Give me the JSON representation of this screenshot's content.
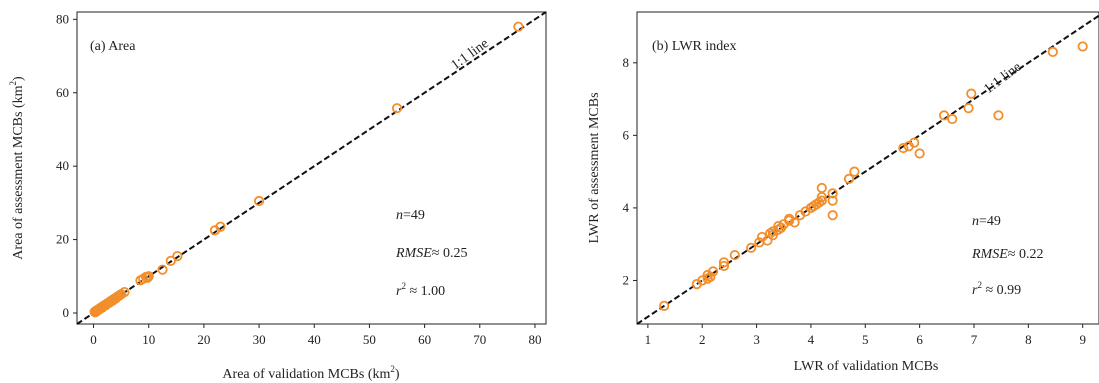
{
  "chart_data": [
    {
      "type": "scatter",
      "panel_label": "(a) Area",
      "xlabel": "Area of validation MCBs (km",
      "xlabel_sup": "2",
      "xlabel_tail": ")",
      "ylabel": "Area of assessment MCBs (km",
      "ylabel_sup": "2",
      "ylabel_tail": ")",
      "xlim": [
        -3,
        82
      ],
      "ylim": [
        -3,
        82
      ],
      "xticks": [
        0,
        10,
        20,
        30,
        40,
        50,
        60,
        70,
        80
      ],
      "yticks": [
        0,
        20,
        40,
        60,
        80
      ],
      "one_to_one_label": "1:1 line",
      "stats": {
        "n_label": "n",
        "n_value": "=49",
        "rmse_label": "RMSE",
        "rmse_value": "≈ 0.25",
        "r2_label": "r",
        "r2_sup": "2",
        "r2_value": " ≈ 1.00"
      },
      "marker_color": "#f28e2b",
      "points": [
        [
          0.2,
          0.3
        ],
        [
          0.4,
          0.5
        ],
        [
          0.6,
          0.7
        ],
        [
          0.8,
          0.9
        ],
        [
          1.0,
          1.1
        ],
        [
          1.2,
          1.3
        ],
        [
          1.5,
          1.6
        ],
        [
          1.8,
          1.9
        ],
        [
          2.1,
          2.2
        ],
        [
          2.4,
          2.5
        ],
        [
          2.7,
          2.8
        ],
        [
          3.0,
          3.1
        ],
        [
          3.3,
          3.4
        ],
        [
          3.6,
          3.7
        ],
        [
          3.9,
          4.0
        ],
        [
          4.2,
          4.3
        ],
        [
          4.5,
          4.6
        ],
        [
          5.0,
          5.1
        ],
        [
          5.6,
          5.7
        ],
        [
          8.5,
          8.9
        ],
        [
          9.0,
          9.3
        ],
        [
          9.5,
          9.8
        ],
        [
          10.0,
          10.0
        ],
        [
          12.5,
          11.8
        ],
        [
          14.0,
          14.2
        ],
        [
          15.2,
          15.5
        ],
        [
          22.0,
          22.5
        ],
        [
          23.0,
          23.5
        ],
        [
          30.0,
          30.5
        ],
        [
          55.0,
          55.8
        ],
        [
          77.0,
          78.0
        ],
        [
          0.3,
          0.2
        ],
        [
          0.5,
          0.6
        ],
        [
          0.7,
          0.6
        ],
        [
          0.9,
          1.0
        ],
        [
          1.1,
          1.0
        ],
        [
          1.3,
          1.4
        ],
        [
          1.6,
          1.5
        ],
        [
          1.9,
          2.0
        ],
        [
          2.2,
          2.1
        ],
        [
          2.5,
          2.6
        ],
        [
          2.8,
          2.7
        ],
        [
          3.1,
          3.2
        ],
        [
          3.4,
          3.3
        ],
        [
          3.7,
          3.8
        ],
        [
          4.0,
          3.9
        ],
        [
          4.3,
          4.4
        ],
        [
          4.8,
          4.9
        ],
        [
          9.8,
          9.6
        ]
      ]
    },
    {
      "type": "scatter",
      "panel_label": "(b) LWR index",
      "xlabel": "LWR of validation MCBs",
      "ylabel": "LWR of assessment MCBs",
      "xlim": [
        0.8,
        9.3
      ],
      "ylim": [
        0.8,
        9.4
      ],
      "xticks": [
        1,
        2,
        3,
        4,
        5,
        6,
        7,
        8,
        9
      ],
      "yticks": [
        2,
        4,
        6,
        8
      ],
      "one_to_one_label": "1:1 line",
      "stats": {
        "n_label": "n",
        "n_value": "=49",
        "rmse_label": "RMSE",
        "rmse_value": "≈ 0.22",
        "r2_label": "r",
        "r2_sup": "2",
        "r2_value": " ≈ 0.99"
      },
      "marker_color": "#f28e2b",
      "points": [
        [
          1.3,
          1.3
        ],
        [
          1.9,
          1.9
        ],
        [
          2.0,
          2.0
        ],
        [
          2.1,
          2.05
        ],
        [
          2.1,
          2.15
        ],
        [
          2.2,
          2.25
        ],
        [
          2.4,
          2.4
        ],
        [
          2.4,
          2.5
        ],
        [
          2.6,
          2.7
        ],
        [
          2.9,
          2.9
        ],
        [
          3.1,
          3.2
        ],
        [
          3.2,
          3.1
        ],
        [
          3.3,
          3.25
        ],
        [
          3.3,
          3.35
        ],
        [
          3.4,
          3.4
        ],
        [
          3.4,
          3.5
        ],
        [
          3.5,
          3.55
        ],
        [
          3.6,
          3.65
        ],
        [
          3.6,
          3.7
        ],
        [
          3.7,
          3.6
        ],
        [
          3.8,
          3.8
        ],
        [
          3.9,
          3.9
        ],
        [
          4.0,
          4.0
        ],
        [
          4.1,
          4.1
        ],
        [
          4.2,
          4.2
        ],
        [
          4.2,
          4.3
        ],
        [
          4.2,
          4.55
        ],
        [
          4.4,
          4.4
        ],
        [
          4.4,
          3.8
        ],
        [
          4.4,
          4.2
        ],
        [
          4.7,
          4.8
        ],
        [
          4.8,
          5.0
        ],
        [
          5.7,
          5.65
        ],
        [
          5.8,
          5.7
        ],
        [
          5.9,
          5.8
        ],
        [
          6.0,
          5.5
        ],
        [
          6.45,
          6.55
        ],
        [
          6.6,
          6.45
        ],
        [
          6.9,
          6.75
        ],
        [
          6.95,
          7.15
        ],
        [
          7.45,
          6.55
        ],
        [
          8.45,
          8.3
        ],
        [
          9.0,
          8.45
        ],
        [
          3.25,
          3.3
        ],
        [
          3.45,
          3.45
        ],
        [
          3.05,
          3.05
        ],
        [
          4.05,
          4.05
        ],
        [
          4.15,
          4.15
        ],
        [
          2.15,
          2.1
        ]
      ]
    }
  ]
}
